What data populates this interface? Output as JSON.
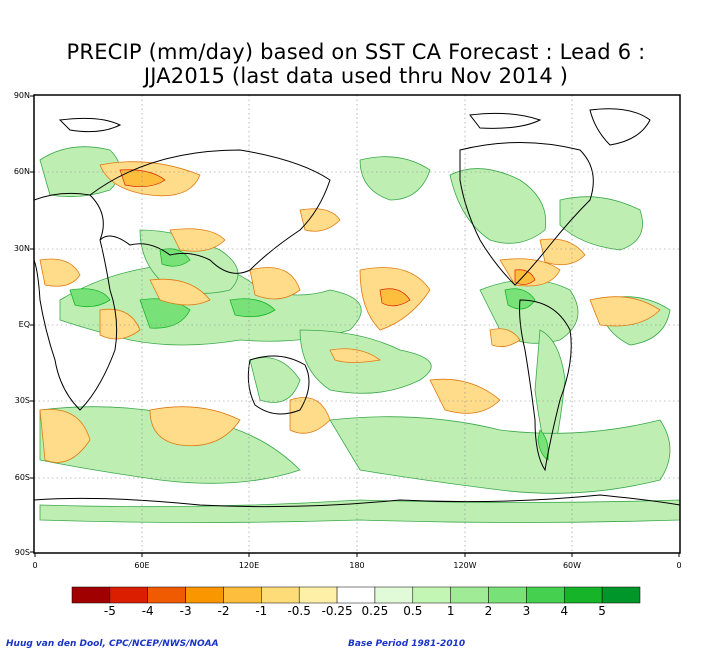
{
  "title_line1": "PRECIP (mm/day) based on SST CA Forecast : Lead 6 :",
  "title_line2": "JJA2015 (last data used thru Nov 2014 )",
  "lat_labels": [
    "90N",
    "60N",
    "30N",
    "EQ",
    "30S",
    "60S",
    "90S"
  ],
  "lon_labels": [
    "0",
    "60E",
    "120E",
    "180",
    "120W",
    "60W",
    "0"
  ],
  "colorbar": {
    "labels": [
      "-5",
      "-4",
      "-3",
      "-2",
      "-1",
      "-0.5",
      "-0.25",
      "0.25",
      "0.5",
      "1",
      "2",
      "3",
      "4",
      "5"
    ],
    "colors": [
      "#a00000",
      "#dc1e00",
      "#f05a00",
      "#fa9600",
      "#fcbe3c",
      "#fedc78",
      "#fff0a8",
      "#ffffff",
      "#e1fbd9",
      "#c3f5b5",
      "#a0ec96",
      "#78e278",
      "#46d050",
      "#16b428",
      "#00962a"
    ]
  },
  "credit_left": "Huug van den Dool, CPC/NCEP/NWS/NOAA",
  "credit_right": "Base Period 1981-2010"
}
